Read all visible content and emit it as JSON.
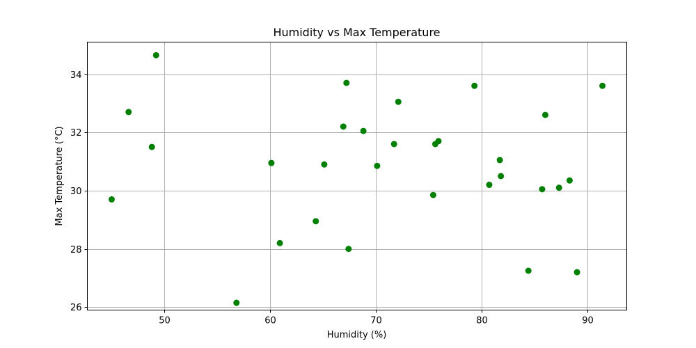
{
  "chart_data": {
    "type": "scatter",
    "title": "Humidity vs Max Temperature",
    "xlabel": "Humidity (%)",
    "ylabel": "Max Temperature (°C)",
    "xlim": [
      42.7,
      93.7
    ],
    "ylim": [
      25.9,
      35.1
    ],
    "xticks": [
      50,
      60,
      70,
      80,
      90
    ],
    "yticks": [
      26,
      28,
      30,
      32,
      34
    ],
    "grid": true,
    "color": "#008000",
    "points": [
      {
        "x": 45.0,
        "y": 29.7
      },
      {
        "x": 46.6,
        "y": 32.7
      },
      {
        "x": 48.8,
        "y": 31.5
      },
      {
        "x": 49.2,
        "y": 34.65
      },
      {
        "x": 56.8,
        "y": 26.15
      },
      {
        "x": 60.1,
        "y": 30.95
      },
      {
        "x": 60.9,
        "y": 28.2
      },
      {
        "x": 64.3,
        "y": 28.95
      },
      {
        "x": 65.1,
        "y": 30.9
      },
      {
        "x": 66.9,
        "y": 32.2
      },
      {
        "x": 67.2,
        "y": 33.7
      },
      {
        "x": 67.4,
        "y": 28.0
      },
      {
        "x": 68.8,
        "y": 32.05
      },
      {
        "x": 70.1,
        "y": 30.85
      },
      {
        "x": 71.7,
        "y": 31.6
      },
      {
        "x": 72.1,
        "y": 33.05
      },
      {
        "x": 75.4,
        "y": 29.85
      },
      {
        "x": 75.6,
        "y": 31.6
      },
      {
        "x": 75.9,
        "y": 31.7
      },
      {
        "x": 79.3,
        "y": 33.6
      },
      {
        "x": 80.7,
        "y": 30.2
      },
      {
        "x": 81.7,
        "y": 31.05
      },
      {
        "x": 81.8,
        "y": 30.5
      },
      {
        "x": 84.4,
        "y": 27.25
      },
      {
        "x": 85.7,
        "y": 30.05
      },
      {
        "x": 86.0,
        "y": 32.6
      },
      {
        "x": 87.3,
        "y": 30.1
      },
      {
        "x": 88.3,
        "y": 30.35
      },
      {
        "x": 89.0,
        "y": 27.2
      },
      {
        "x": 91.4,
        "y": 33.6
      }
    ]
  }
}
